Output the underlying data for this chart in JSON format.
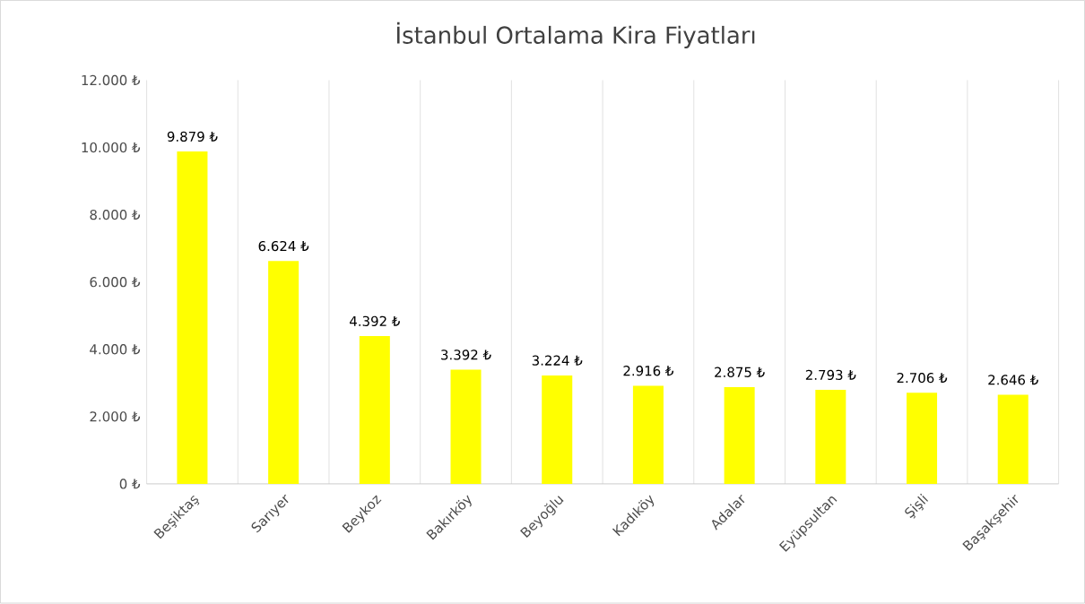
{
  "chart_data": {
    "type": "bar",
    "title": "İstanbul Ortalama Kira Fiyatları",
    "categories": [
      "Beşiktaş",
      "Sarıyer",
      "Beykoz",
      "Bakırköy",
      "Beyoğlu",
      "Kadıköy",
      "Adalar",
      "Eyüpsultan",
      "Şişli",
      "Başakşehir"
    ],
    "values": [
      9879,
      6624,
      4392,
      3392,
      3224,
      2916,
      2875,
      2793,
      2706,
      2646
    ],
    "value_labels": [
      "9.879 ₺",
      "6.624 ₺",
      "4.392 ₺",
      "3.392 ₺",
      "3.224 ₺",
      "2.916 ₺",
      "2.875 ₺",
      "2.793 ₺",
      "2.706 ₺",
      "2.646 ₺"
    ],
    "color": "#ffff00",
    "ylim": [
      0,
      12000
    ],
    "yticks": [
      {
        "value": 0,
        "label": "0 ₺"
      },
      {
        "value": 2000,
        "label": "2.000 ₺"
      },
      {
        "value": 4000,
        "label": "4.000 ₺"
      },
      {
        "value": 6000,
        "label": "6.000 ₺"
      },
      {
        "value": 8000,
        "label": "8.000 ₺"
      },
      {
        "value": 10000,
        "label": "10.000 ₺"
      },
      {
        "value": 12000,
        "label": "12.000 ₺"
      }
    ],
    "grid": "x"
  }
}
